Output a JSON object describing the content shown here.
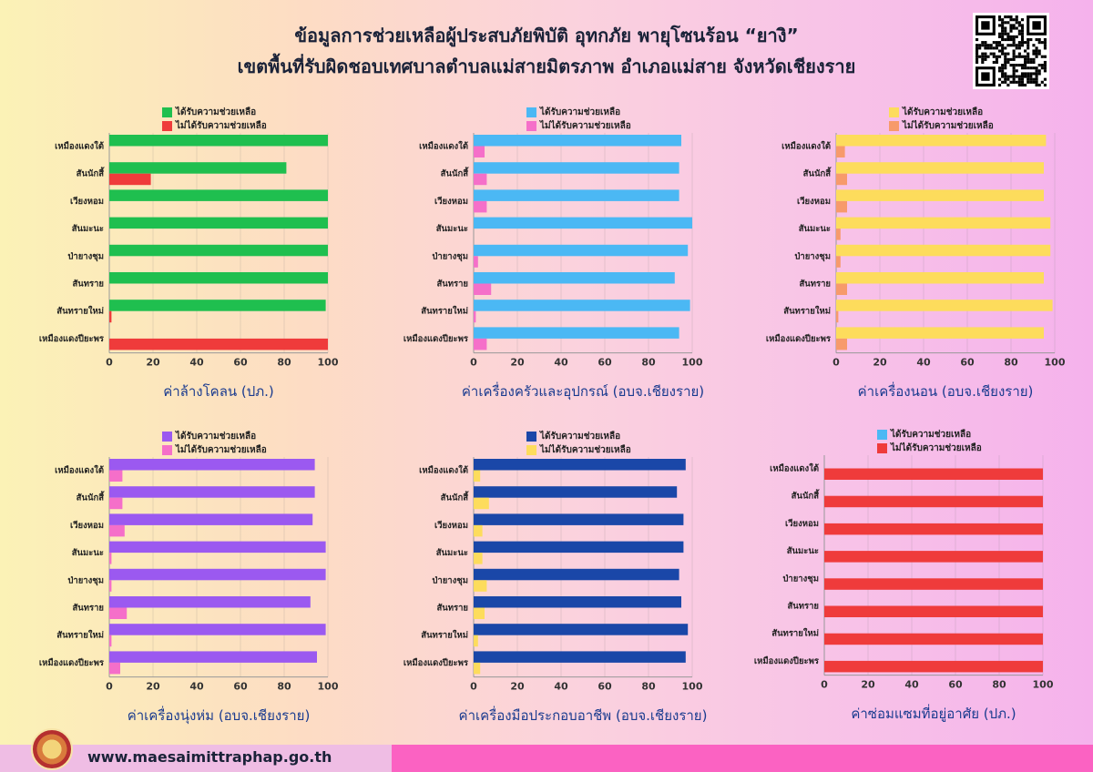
{
  "title": {
    "line1": "ข้อมูลการช่วยเหลือผู้ประสบภัยพิบัติ อุทกภัย พายุโซนร้อน “ยางิ”",
    "line2": "เขตพื้นที่รับผิดชอบเทศบาลตำบลแม่สายมิตรภาพ อำเภอแม่สาย จังหวัดเชียงราย"
  },
  "footer": {
    "website": "www.maesaimittraphap.go.th"
  },
  "icons": {
    "qr": "qr-code-icon",
    "logo": "municipality-seal-icon"
  },
  "chart_data": [
    {
      "type": "bar",
      "orientation": "horizontal",
      "caption": "ค่าล้างโคลน (ปภ.)",
      "categories": [
        "เหมืองแดงใต้",
        "สันนักสี้",
        "เวียงหอม",
        "สันมะนะ",
        "ป่ายางชุม",
        "สันทราย",
        "สันทรายใหม่",
        "เหมืองแดงปียะพร"
      ],
      "xlim": [
        0,
        100
      ],
      "ticks": [
        "0",
        "20",
        "40",
        "60",
        "80",
        "100"
      ],
      "series": [
        {
          "name": "ได้รับความช่วยเหลือ",
          "color": "#1fbf4f",
          "values": [
            100,
            81,
            100,
            100,
            100,
            100,
            99,
            0
          ]
        },
        {
          "name": "ไม่ได้รับความช่วยเหลือ",
          "color": "#ef3b3b",
          "values": [
            0,
            19,
            0,
            0,
            0,
            0,
            1,
            100
          ]
        }
      ]
    },
    {
      "type": "bar",
      "orientation": "horizontal",
      "caption": "ค่าเครื่องครัวและอุปกรณ์ (อบจ.เชียงราย)",
      "categories": [
        "เหมืองแดงใต้",
        "สันนักสี้",
        "เวียงหอม",
        "สันมะนะ",
        "ป่ายางชุม",
        "สันทราย",
        "สันทรายใหม่",
        "เหมืองแดงปียะพร"
      ],
      "xlim": [
        0,
        100
      ],
      "ticks": [
        "0",
        "20",
        "40",
        "60",
        "80",
        "100"
      ],
      "series": [
        {
          "name": "ได้รับความช่วยเหลือ",
          "color": "#4bb8f4",
          "values": [
            95,
            94,
            94,
            100,
            98,
            92,
            99,
            94
          ]
        },
        {
          "name": "ไม่ได้รับความช่วยเหลือ",
          "color": "#f56fc9",
          "values": [
            5,
            6,
            6,
            0,
            2,
            8,
            1,
            6
          ]
        }
      ]
    },
    {
      "type": "bar",
      "orientation": "horizontal",
      "caption": "ค่าเครื่องนอน (อบจ.เชียงราย)",
      "categories": [
        "เหมืองแดงใต้",
        "สันนักสี้",
        "เวียงหอม",
        "สันมะนะ",
        "ป่ายางชุม",
        "สันทราย",
        "สันทรายใหม่",
        "เหมืองแดงปียะพร"
      ],
      "xlim": [
        0,
        100
      ],
      "ticks": [
        "0",
        "20",
        "40",
        "60",
        "80",
        "100"
      ],
      "series": [
        {
          "name": "ได้รับความช่วยเหลือ",
          "color": "#fddc5c",
          "values": [
            96,
            95,
            95,
            98,
            98,
            95,
            99,
            95
          ]
        },
        {
          "name": "ไม่ได้รับความช่วยเหลือ",
          "color": "#f79a6b",
          "values": [
            4,
            5,
            5,
            2,
            2,
            5,
            1,
            5
          ]
        }
      ]
    },
    {
      "type": "bar",
      "orientation": "horizontal",
      "caption": "ค่าเครื่องนุ่งห่ม (อบจ.เชียงราย)",
      "categories": [
        "เหมืองแดงใต้",
        "สันนักสี้",
        "เวียงหอม",
        "สันมะนะ",
        "ป่ายางชุม",
        "สันทราย",
        "สันทรายใหม่",
        "เหมืองแดงปียะพร"
      ],
      "xlim": [
        0,
        100
      ],
      "ticks": [
        "0",
        "20",
        "40",
        "60",
        "80",
        "100"
      ],
      "series": [
        {
          "name": "ได้รับความช่วยเหลือ",
          "color": "#9b59f0",
          "values": [
            94,
            94,
            93,
            99,
            99,
            92,
            99,
            95
          ]
        },
        {
          "name": "ไม่ได้รับความช่วยเหลือ",
          "color": "#f56fc9",
          "values": [
            6,
            6,
            7,
            1,
            1,
            8,
            1,
            5
          ]
        }
      ]
    },
    {
      "type": "bar",
      "orientation": "horizontal",
      "caption": "ค่าเครื่องมือประกอบอาชีพ (อบจ.เชียงราย)",
      "categories": [
        "เหมืองแดงใต้",
        "สันนักสี้",
        "เวียงหอม",
        "สันมะนะ",
        "ป่ายางชุม",
        "สันทราย",
        "สันทรายใหม่",
        "เหมืองแดงปียะพร"
      ],
      "xlim": [
        0,
        100
      ],
      "ticks": [
        "0",
        "20",
        "40",
        "60",
        "80",
        "100"
      ],
      "series": [
        {
          "name": "ได้รับความช่วยเหลือ",
          "color": "#1a47a8",
          "values": [
            97,
            93,
            96,
            96,
            94,
            95,
            98,
            97
          ]
        },
        {
          "name": "ไม่ได้รับความช่วยเหลือ",
          "color": "#fddc5c",
          "values": [
            3,
            7,
            4,
            4,
            6,
            5,
            2,
            3
          ]
        }
      ]
    },
    {
      "type": "bar",
      "orientation": "horizontal",
      "caption": "ค่าซ่อมแซมที่อยู่อาศัย (ปภ.)",
      "categories": [
        "เหมืองแดงใต้",
        "สันนักสี้",
        "เวียงหอม",
        "สันมะนะ",
        "ป่ายางชุม",
        "สันทราย",
        "สันทรายใหม่",
        "เหมืองแดงปียะพร"
      ],
      "xlim": [
        0,
        100
      ],
      "ticks": [
        "0",
        "20",
        "40",
        "60",
        "80",
        "100"
      ],
      "series": [
        {
          "name": "ได้รับความช่วยเหลือ",
          "color": "#4bb8f4",
          "values": [
            0,
            0,
            0,
            0,
            0,
            0,
            0,
            0
          ]
        },
        {
          "name": "ไม่ได้รับความช่วยเหลือ",
          "color": "#ef3b3b",
          "values": [
            100,
            100,
            100,
            100,
            100,
            100,
            100,
            100
          ]
        }
      ]
    }
  ]
}
